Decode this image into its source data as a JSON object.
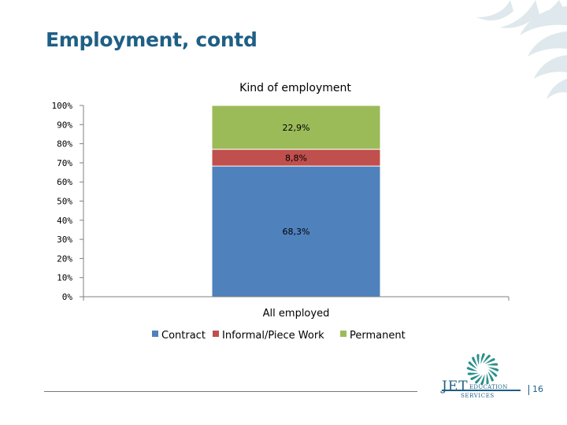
{
  "slide": {
    "title": "Employment, contd",
    "page_number": "16"
  },
  "logo": {
    "name": "JET",
    "line1": "EDUCATION",
    "line2": "SERVICES"
  },
  "colors": {
    "contract": "#4f81bd",
    "informal": "#c0504d",
    "permanent": "#9bbb59",
    "title": "#1f5f85"
  },
  "chart_data": {
    "type": "bar",
    "stacked": true,
    "title": "Kind of employment",
    "categories": [
      "All employed"
    ],
    "ylim": [
      0,
      100
    ],
    "yticks": [
      "0%",
      "10%",
      "20%",
      "30%",
      "40%",
      "50%",
      "60%",
      "70%",
      "80%",
      "90%",
      "100%"
    ],
    "grid": false,
    "legend_position": "bottom",
    "series": [
      {
        "name": "Contract",
        "values": [
          68.3
        ],
        "label": "68,3%"
      },
      {
        "name": "Informal/Piece Work",
        "values": [
          8.8
        ],
        "label": "8,8%"
      },
      {
        "name": "Permanent",
        "values": [
          22.9
        ],
        "label": "22,9%"
      }
    ]
  }
}
